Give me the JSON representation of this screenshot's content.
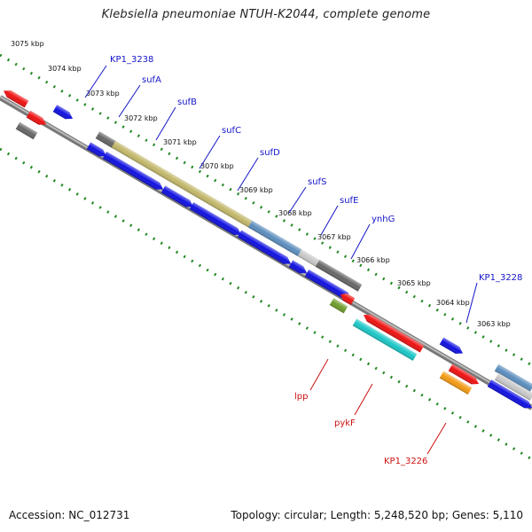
{
  "title": "Klebsiella pneumoniae NTUH-K2044, complete genome",
  "footer": {
    "accession": "Accession: NC_012731",
    "summary": "Topology: circular; Length: 5,248,520 bp; Genes: 5,110"
  },
  "scale": {
    "ticks": [
      "3075 kbp",
      "3074 kbp",
      "3073 kbp",
      "3072 kbp",
      "3071 kbp",
      "3070 kbp",
      "3069 kbp",
      "3068 kbp",
      "3067 kbp",
      "3066 kbp",
      "3065 kbp",
      "3064 kbp",
      "3063 kbp"
    ]
  },
  "colors": {
    "forward_label": "#1414c8",
    "reverse_label": "#cc1111",
    "cds_forward": "#1010e0",
    "cds_reverse": "#ee1111",
    "gray": "#666666",
    "khaki": "#c2b76a",
    "steel": "#5b8dbd",
    "silver": "#c8c8c8",
    "cyan": "#1bc6c6",
    "olive": "#6e9b2c",
    "orange": "#f29a12",
    "track_dots": "#228822",
    "backbone": "#888888"
  },
  "genes_top": [
    "KP1_3238",
    "sufA",
    "sufB",
    "sufC",
    "sufD",
    "sufS",
    "sufE",
    "ynhG",
    "KP1_3228"
  ],
  "genes_bottom": [
    "lpp",
    "pykF",
    "KP1_3226"
  ]
}
